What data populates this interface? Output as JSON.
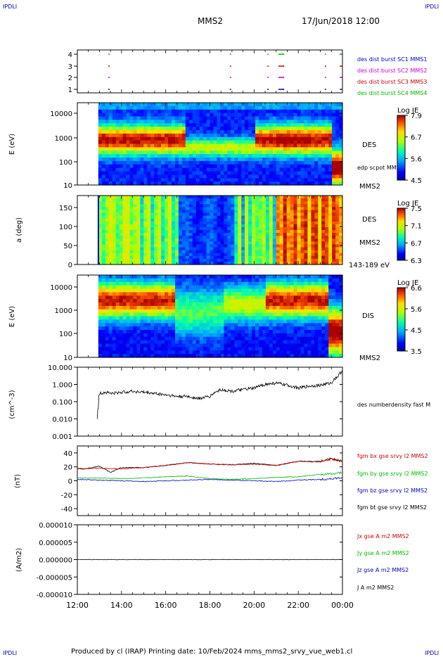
{
  "header": {
    "corner_label_left": "IPDLI",
    "corner_label_right": "IPDLI",
    "spacecraft": "MMS2",
    "datetime": "17/Jun/2018 12:00"
  },
  "footer": {
    "text": "Produced by cl (IRAP)   Printing date: 10/Feb/2024   mms_mms2_srvy_vue_web1.cl",
    "corner_label_left": "IPDLI",
    "corner_label_right": "IPDLI"
  },
  "colors": {
    "blue": "#0000cc",
    "magenta": "#cc00cc",
    "red": "#cc0000",
    "green": "#00bb00",
    "black": "#000000"
  },
  "chart_data": [
    {
      "type": "scatter",
      "panel": "burst-availability",
      "yticks": [
        "4",
        "3",
        "2",
        "1"
      ],
      "legend": [
        {
          "label": "des dist burst SC1 MMS1",
          "color": "#0000cc"
        },
        {
          "label": "des dist burst SC2 MMS2",
          "color": "#cc00cc"
        },
        {
          "label": "des dist burst SC3 MMS3",
          "color": "#cc0000"
        },
        {
          "label": "des dist burst SC4 MMS4",
          "color": "#00bb00"
        }
      ],
      "marks_hours": [
        13.4,
        18.9,
        20.6,
        21.1,
        21.3,
        23.2,
        23.9
      ]
    },
    {
      "type": "heatmap",
      "panel": "des-energy",
      "ylabel": "E (eV)",
      "yticks": [
        "10000",
        "1000",
        "100",
        "10"
      ],
      "side_labels": [
        "DES",
        "edp scpot MMS2",
        "MMS2"
      ],
      "colorbar": {
        "title": "Log JE",
        "ticks": [
          "7.9",
          "6.7",
          "5.6",
          "4.5"
        ]
      }
    },
    {
      "type": "heatmap",
      "panel": "des-pitch",
      "ylabel": "a (deg)",
      "yticks": [
        "150",
        "100",
        "50",
        "0"
      ],
      "side_labels": [
        "DES",
        "MMS2",
        "143-189 eV"
      ],
      "colorbar": {
        "title": "Log JE",
        "ticks": [
          "7.5",
          "7.1",
          "6.7",
          "6.3"
        ]
      }
    },
    {
      "type": "heatmap",
      "panel": "dis-energy",
      "ylabel": "E (eV)",
      "yticks": [
        "10000",
        "1000",
        "100",
        "10"
      ],
      "side_labels": [
        "DIS",
        "MMS2"
      ],
      "colorbar": {
        "title": "Log JE",
        "ticks": [
          "6.6",
          "5.6",
          "4.5",
          "3.5"
        ]
      }
    },
    {
      "type": "line",
      "panel": "density",
      "ylabel": "(cm^-3)",
      "yticks": [
        "10.000",
        "1.000",
        "0.100",
        "0.010",
        "0.001"
      ],
      "ylim": [
        0.001,
        10
      ],
      "yscale": "log",
      "series": [
        {
          "name": "des numberdensity fast M",
          "color": "#000000",
          "x": [
            12.9,
            12.95,
            13.0,
            13.3,
            13.6,
            14.0,
            14.5,
            15.0,
            15.5,
            16.0,
            16.5,
            17.0,
            17.5,
            18.0,
            18.5,
            19.0,
            19.5,
            20.0,
            20.5,
            21.0,
            21.5,
            22.0,
            22.5,
            23.0,
            23.5,
            23.8,
            24.0
          ],
          "y": [
            0.012,
            0.05,
            0.3,
            0.35,
            0.3,
            0.35,
            0.4,
            0.35,
            0.3,
            0.25,
            0.2,
            0.2,
            0.15,
            0.2,
            0.5,
            0.4,
            0.5,
            0.6,
            1.0,
            1.2,
            0.9,
            0.6,
            0.8,
            0.9,
            1.2,
            3.0,
            6.0
          ]
        }
      ]
    },
    {
      "type": "line",
      "panel": "magnetic-field",
      "ylabel": "(nT)",
      "yticks": [
        "40",
        "20",
        "0",
        "-20",
        "-40"
      ],
      "ylim": [
        -50,
        50
      ],
      "series": [
        {
          "name": "fgm bx gse srvy l2 MMS2",
          "color": "#cc0000",
          "x": [
            12.0,
            13.0,
            14.0,
            15.0,
            16.0,
            17.0,
            18.0,
            19.0,
            20.0,
            21.0,
            22.0,
            23.0,
            23.5,
            24.0
          ],
          "y": [
            17,
            18,
            17,
            19,
            22,
            26,
            24,
            23,
            24,
            22,
            28,
            27,
            31,
            28
          ]
        },
        {
          "name": "fgm by gse srvy l2 MMS2",
          "color": "#00bb00",
          "x": [
            12.0,
            13.0,
            14.0,
            15.0,
            16.0,
            17.0,
            18.0,
            19.0,
            20.0,
            21.0,
            22.0,
            23.0,
            23.5,
            24.0
          ],
          "y": [
            4,
            4,
            3,
            4,
            6,
            7,
            3,
            2,
            3,
            5,
            6,
            9,
            10,
            12
          ]
        },
        {
          "name": "fgm bz gse srvy l2 MMS2",
          "color": "#0000cc",
          "x": [
            12.0,
            13.0,
            14.0,
            15.0,
            16.0,
            17.0,
            18.0,
            19.0,
            20.0,
            21.0,
            22.0,
            23.0,
            23.5,
            24.0
          ],
          "y": [
            2,
            1,
            0,
            -1,
            0,
            1,
            2,
            1,
            0,
            -1,
            1,
            2,
            3,
            4
          ]
        },
        {
          "name": "fgm bt gse srvy l2 MMS2",
          "color": "#000000",
          "x": [
            12.0,
            12.3,
            13.0,
            13.5,
            14.0,
            15.0,
            16.0,
            17.0,
            18.0,
            19.0,
            20.0,
            21.0,
            22.0,
            23.0,
            23.5,
            24.0
          ],
          "y": [
            18,
            17,
            21,
            12,
            19,
            19,
            22,
            26,
            24,
            23,
            25,
            22,
            28,
            28,
            32,
            28
          ]
        }
      ]
    },
    {
      "type": "line",
      "panel": "current-density",
      "ylabel": "(A/m2)",
      "yticks": [
        "0.000010",
        "0.000005",
        "0.000000",
        "-0.000005",
        "-0.000010"
      ],
      "ylim": [
        -1e-05,
        1e-05
      ],
      "xticks": [
        "12:00",
        "14:00",
        "16:00",
        "18:00",
        "20:00",
        "22:00",
        "00:00"
      ],
      "series": [
        {
          "name": "Jx gse A m2 MMS2",
          "color": "#cc0000",
          "x": [
            12.0,
            24.0
          ],
          "y": [
            0,
            0
          ]
        },
        {
          "name": "Jy gse A m2 MMS2",
          "color": "#00bb00",
          "x": [
            12.0,
            24.0
          ],
          "y": [
            0,
            0
          ]
        },
        {
          "name": "Jz gse A m2 MMS2",
          "color": "#0000cc",
          "x": [
            12.0,
            24.0
          ],
          "y": [
            0,
            0
          ]
        },
        {
          "name": "J A m2 MMS2",
          "color": "#000000",
          "x": [
            12.0,
            24.0
          ],
          "y": [
            0,
            0
          ]
        }
      ]
    }
  ]
}
